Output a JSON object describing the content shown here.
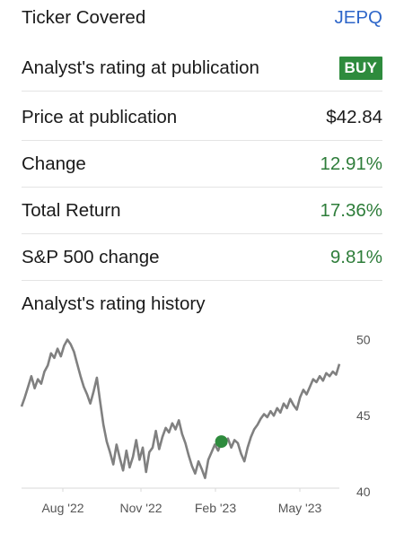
{
  "summary": {
    "ticker": {
      "label": "Ticker Covered",
      "value": "JEPQ"
    },
    "rating": {
      "label": "Analyst's rating at publication",
      "value": "BUY"
    },
    "price": {
      "label": "Price at publication",
      "value": "$42.84"
    },
    "change": {
      "label": "Change",
      "value": "12.91%"
    },
    "total_return": {
      "label": "Total Return",
      "value": "17.36%"
    },
    "sp500": {
      "label": "S&P 500 change",
      "value": "9.81%"
    }
  },
  "colors": {
    "link": "#2e66c9",
    "positive": "#2e7d3a",
    "buy_badge": "#2e8b3d",
    "price_line": "#808080",
    "rating_marker": "#2e8b3d"
  },
  "history": {
    "title": "Analyst's rating history"
  },
  "chart_data": {
    "type": "line",
    "title": "",
    "xlabel": "",
    "ylabel": "",
    "x_ticks": [
      "Aug '22",
      "Nov '22",
      "Feb '23",
      "May '23"
    ],
    "y_ticks": [
      50,
      45,
      40
    ],
    "ylim": [
      40,
      50.5
    ],
    "grid": false,
    "series": [
      {
        "values": [
          45.6,
          46.2,
          46.9,
          47.6,
          46.8,
          47.4,
          47.1,
          47.9,
          48.3,
          49.1,
          48.8,
          49.4,
          48.9,
          49.6,
          50.0,
          49.7,
          49.2,
          48.4,
          47.6,
          46.9,
          46.4,
          45.8,
          46.6,
          47.5,
          45.9,
          44.4,
          43.3,
          42.6,
          41.8,
          43.1,
          42.2,
          41.4,
          42.7,
          41.6,
          42.3,
          43.4,
          42.1,
          42.9,
          41.3,
          42.6,
          42.9,
          44.0,
          42.8,
          43.6,
          44.2,
          43.9,
          44.5,
          44.1,
          44.7,
          43.8,
          43.2,
          42.4,
          41.7,
          41.2,
          42.0,
          41.5,
          40.9,
          42.1,
          42.6,
          43.1,
          42.7,
          43.3,
          43.1,
          43.5,
          42.9,
          43.4,
          43.2,
          42.5,
          42.0,
          42.9,
          43.6,
          44.1,
          44.4,
          44.8,
          45.1,
          44.9,
          45.3,
          45.0,
          45.5,
          45.2,
          45.8,
          45.5,
          46.1,
          45.7,
          45.4,
          46.2,
          46.7,
          46.4,
          46.9,
          47.4,
          47.2,
          47.6,
          47.3,
          47.8,
          47.6,
          47.9,
          47.7,
          48.4
        ]
      }
    ],
    "markers": [
      {
        "label": "BUY",
        "x_index": 61,
        "value": 43.3
      }
    ]
  }
}
